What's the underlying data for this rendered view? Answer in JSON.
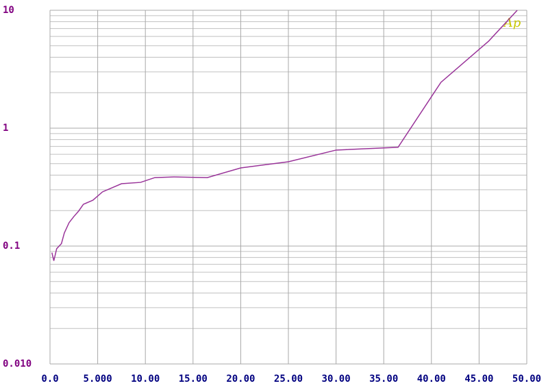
{
  "chart_data": {
    "type": "line",
    "logo": "Ap",
    "x": [
      0.2,
      0.4,
      0.7,
      1.2,
      1.5,
      2.0,
      2.5,
      3.0,
      3.5,
      4.5,
      5.5,
      7.5,
      9.5,
      11,
      13,
      16.5,
      20,
      25,
      30,
      36.5,
      41,
      46,
      49
    ],
    "series": [
      {
        "color": "#993399",
        "values": [
          0.088,
          0.075,
          0.095,
          0.105,
          0.129,
          0.158,
          0.178,
          0.198,
          0.226,
          0.245,
          0.288,
          0.338,
          0.347,
          0.381,
          0.386,
          0.381,
          0.46,
          0.519,
          0.652,
          0.688,
          2.45,
          5.47,
          10
        ]
      }
    ],
    "xlim": [
      0,
      50
    ],
    "xticks": [
      {
        "value": 0,
        "label": "0.0"
      },
      {
        "value": 5,
        "label": "5.000"
      },
      {
        "value": 10,
        "label": "10.00"
      },
      {
        "value": 15,
        "label": "15.00"
      },
      {
        "value": 20,
        "label": "20.00"
      },
      {
        "value": 25,
        "label": "25.00"
      },
      {
        "value": 30,
        "label": "30.00"
      },
      {
        "value": 35,
        "label": "35.00"
      },
      {
        "value": 40,
        "label": "40.00"
      },
      {
        "value": 45,
        "label": "45.00"
      },
      {
        "value": 50,
        "label": "50.00"
      }
    ],
    "ylim": [
      0.01,
      10
    ],
    "log_y": true,
    "yticks": [
      {
        "value": 0.01,
        "label": "0.010"
      },
      0.1,
      1,
      10
    ],
    "grid": true,
    "minor_grid": true,
    "xtick_color": "#000080",
    "ytick_color": "#800080",
    "logo_color": "#c8c800"
  }
}
